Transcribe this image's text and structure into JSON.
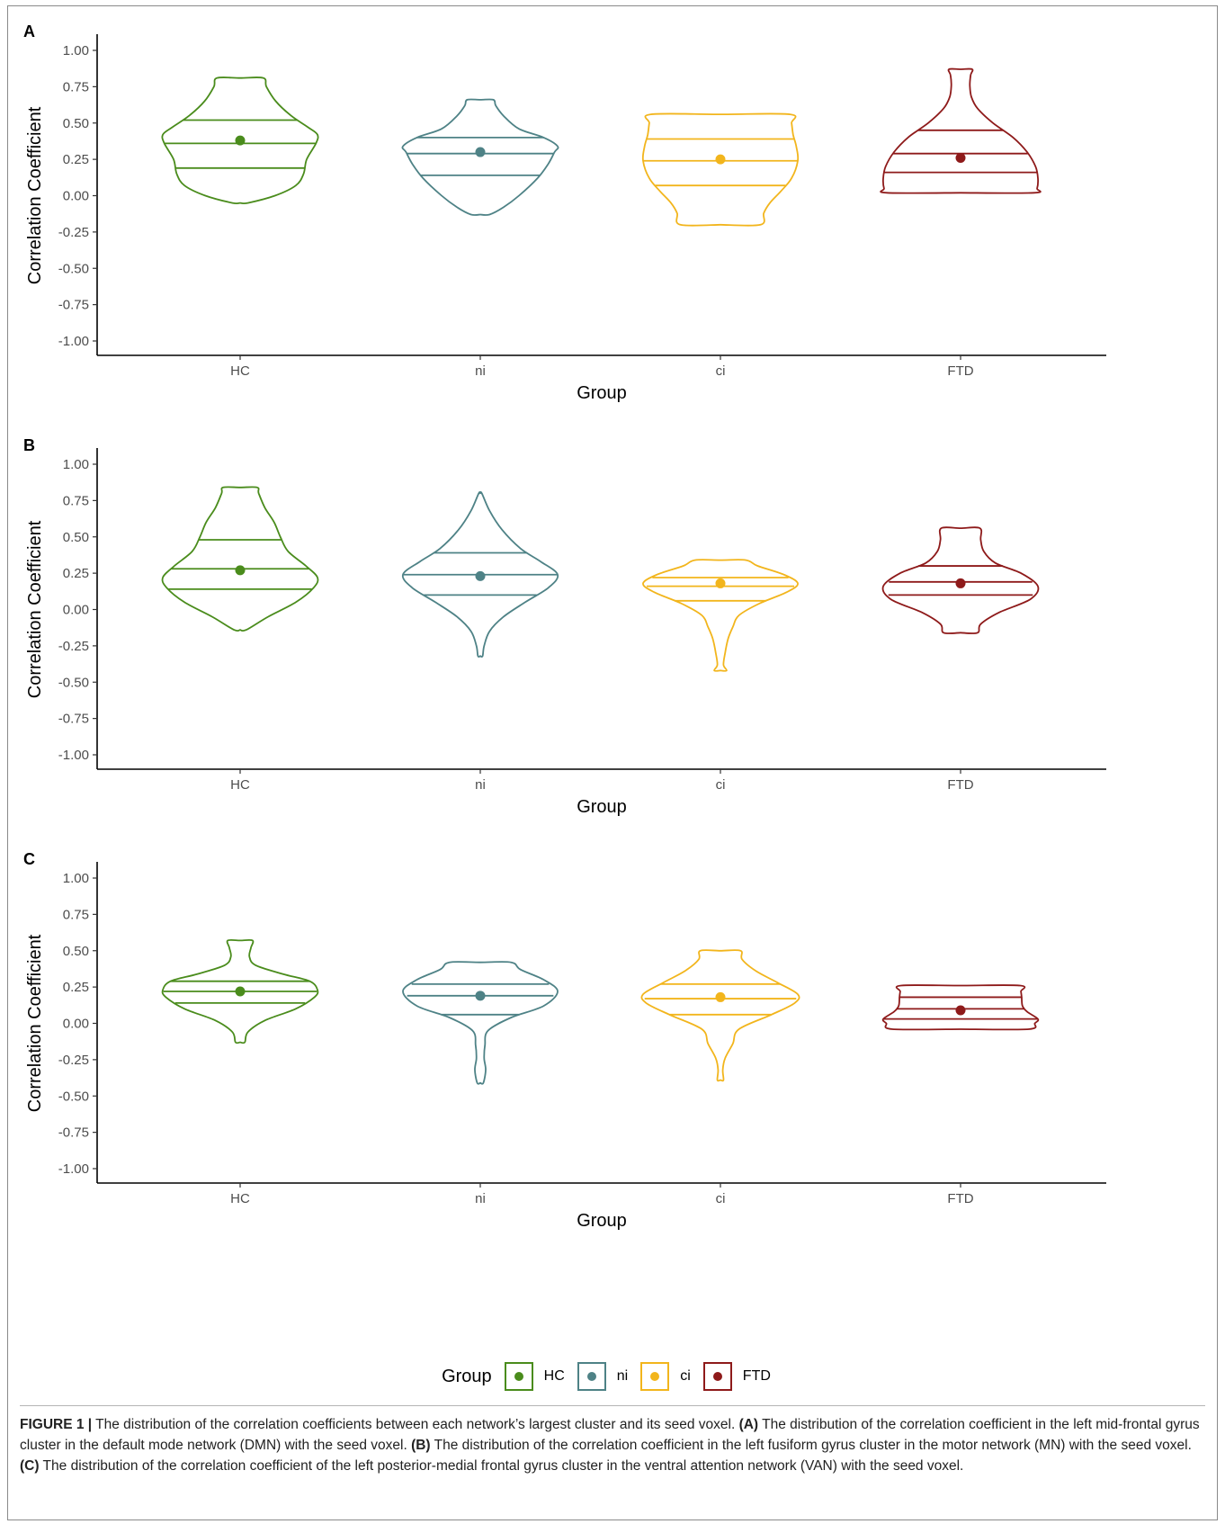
{
  "figure": {
    "label": "FIGURE 1 |",
    "caption_parts": [
      {
        "text": " The distribution of the correlation coefficients between each network’s largest cluster and its seed voxel. ",
        "bold": false
      },
      {
        "text": "(A)",
        "bold": true
      },
      {
        "text": " The distribution of the correlation coefficient in the left mid-frontal gyrus cluster in the default mode network (DMN) with the seed voxel. ",
        "bold": false
      },
      {
        "text": "(B)",
        "bold": true
      },
      {
        "text": " The distribution of the correlation coefficient in the left fusiform gyrus cluster in the motor network (MN) with the seed voxel. ",
        "bold": false
      },
      {
        "text": "(C)",
        "bold": true
      },
      {
        "text": " The distribution of the correlation coefficient of the left posterior-medial frontal gyrus cluster in the ventral attention network (VAN) with the seed voxel.",
        "bold": false
      }
    ]
  },
  "legend": {
    "title": "Group",
    "items": [
      {
        "label": "HC",
        "color": "#4a8c1c"
      },
      {
        "label": "ni",
        "color": "#4e8286"
      },
      {
        "label": "ci",
        "color": "#f2b51c"
      },
      {
        "label": "FTD",
        "color": "#8e1a1a"
      }
    ]
  },
  "chart_data": [
    {
      "type": "violin",
      "panel": "A",
      "xlabel": "Group",
      "ylabel": "Correlation Coefficient",
      "ylim": [
        -1.0,
        1.0
      ],
      "yticks": [
        1.0,
        0.75,
        0.5,
        0.25,
        0.0,
        -0.25,
        -0.5,
        -0.75,
        -1.0
      ],
      "ytick_labels": [
        "1.00",
        "0.75",
        "0.50",
        "0.25",
        "0.00",
        "-0.25",
        "-0.50",
        "-0.75",
        "-1.00"
      ],
      "categories": [
        "HC",
        "ni",
        "ci",
        "FTD"
      ],
      "groups": [
        {
          "name": "HC",
          "color": "#4a8c1c",
          "min": -0.05,
          "max": 0.81,
          "q1": 0.19,
          "median": 0.36,
          "q3": 0.52,
          "mean": 0.38,
          "profile": [
            [
              -0.05,
              0.1
            ],
            [
              0.0,
              0.45
            ],
            [
              0.07,
              0.72
            ],
            [
              0.15,
              0.82
            ],
            [
              0.25,
              0.86
            ],
            [
              0.36,
              0.98
            ],
            [
              0.42,
              1.0
            ],
            [
              0.47,
              0.88
            ],
            [
              0.55,
              0.66
            ],
            [
              0.65,
              0.46
            ],
            [
              0.75,
              0.34
            ],
            [
              0.81,
              0.3
            ]
          ]
        },
        {
          "name": "ni",
          "color": "#4e8286",
          "min": -0.13,
          "max": 0.66,
          "q1": 0.14,
          "median": 0.29,
          "q3": 0.4,
          "mean": 0.3,
          "profile": [
            [
              -0.13,
              0.12
            ],
            [
              -0.08,
              0.3
            ],
            [
              0.0,
              0.5
            ],
            [
              0.12,
              0.74
            ],
            [
              0.22,
              0.88
            ],
            [
              0.3,
              0.96
            ],
            [
              0.34,
              1.0
            ],
            [
              0.4,
              0.82
            ],
            [
              0.46,
              0.5
            ],
            [
              0.55,
              0.3
            ],
            [
              0.62,
              0.2
            ],
            [
              0.66,
              0.17
            ]
          ]
        },
        {
          "name": "ci",
          "color": "#f2b51c",
          "min": -0.2,
          "max": 0.56,
          "q1": 0.07,
          "median": 0.24,
          "q3": 0.39,
          "mean": 0.25,
          "profile": [
            [
              -0.2,
              0.52
            ],
            [
              -0.12,
              0.56
            ],
            [
              -0.05,
              0.64
            ],
            [
              0.03,
              0.78
            ],
            [
              0.12,
              0.92
            ],
            [
              0.24,
              1.0
            ],
            [
              0.34,
              0.98
            ],
            [
              0.42,
              0.94
            ],
            [
              0.5,
              0.92
            ],
            [
              0.56,
              0.9
            ]
          ]
        },
        {
          "name": "FTD",
          "color": "#8e1a1a",
          "min": 0.02,
          "max": 0.87,
          "q1": 0.16,
          "median": 0.29,
          "q3": 0.45,
          "mean": 0.26,
          "profile": [
            [
              0.02,
              0.95
            ],
            [
              0.05,
              0.99
            ],
            [
              0.12,
              1.0
            ],
            [
              0.2,
              0.97
            ],
            [
              0.3,
              0.86
            ],
            [
              0.4,
              0.68
            ],
            [
              0.5,
              0.42
            ],
            [
              0.6,
              0.22
            ],
            [
              0.68,
              0.14
            ],
            [
              0.76,
              0.12
            ],
            [
              0.83,
              0.13
            ],
            [
              0.87,
              0.15
            ]
          ]
        }
      ]
    },
    {
      "type": "violin",
      "panel": "B",
      "xlabel": "Group",
      "ylabel": "Correlation Coefficient",
      "ylim": [
        -1.0,
        1.0
      ],
      "yticks": [
        1.0,
        0.75,
        0.5,
        0.25,
        0.0,
        -0.25,
        -0.5,
        -0.75,
        -1.0
      ],
      "ytick_labels": [
        "1.00",
        "0.75",
        "0.50",
        "0.25",
        "0.00",
        "-0.25",
        "-0.50",
        "-0.75",
        "-1.00"
      ],
      "categories": [
        "HC",
        "ni",
        "ci",
        "FTD"
      ],
      "groups": [
        {
          "name": "HC",
          "color": "#4a8c1c",
          "min": -0.14,
          "max": 0.84,
          "q1": 0.14,
          "median": 0.28,
          "q3": 0.48,
          "mean": 0.27,
          "profile": [
            [
              -0.14,
              0.08
            ],
            [
              -0.05,
              0.36
            ],
            [
              0.05,
              0.72
            ],
            [
              0.15,
              0.95
            ],
            [
              0.22,
              1.0
            ],
            [
              0.3,
              0.85
            ],
            [
              0.4,
              0.62
            ],
            [
              0.5,
              0.52
            ],
            [
              0.6,
              0.44
            ],
            [
              0.7,
              0.32
            ],
            [
              0.8,
              0.24
            ],
            [
              0.84,
              0.22
            ]
          ]
        },
        {
          "name": "ni",
          "color": "#4e8286",
          "min": -0.32,
          "max": 0.8,
          "q1": 0.1,
          "median": 0.24,
          "q3": 0.39,
          "mean": 0.23,
          "profile": [
            [
              -0.32,
              0.03
            ],
            [
              -0.25,
              0.05
            ],
            [
              -0.15,
              0.12
            ],
            [
              -0.05,
              0.3
            ],
            [
              0.05,
              0.58
            ],
            [
              0.15,
              0.88
            ],
            [
              0.24,
              1.0
            ],
            [
              0.33,
              0.78
            ],
            [
              0.42,
              0.52
            ],
            [
              0.55,
              0.28
            ],
            [
              0.68,
              0.12
            ],
            [
              0.8,
              0.02
            ]
          ]
        },
        {
          "name": "ci",
          "color": "#f2b51c",
          "min": -0.42,
          "max": 0.34,
          "q1": 0.06,
          "median": 0.16,
          "q3": 0.22,
          "mean": 0.18,
          "profile": [
            [
              -0.42,
              0.08
            ],
            [
              -0.38,
              0.04
            ],
            [
              -0.3,
              0.06
            ],
            [
              -0.2,
              0.1
            ],
            [
              -0.12,
              0.16
            ],
            [
              -0.04,
              0.24
            ],
            [
              0.04,
              0.5
            ],
            [
              0.12,
              0.86
            ],
            [
              0.18,
              1.0
            ],
            [
              0.24,
              0.82
            ],
            [
              0.3,
              0.48
            ],
            [
              0.34,
              0.33
            ]
          ]
        },
        {
          "name": "FTD",
          "color": "#8e1a1a",
          "min": -0.16,
          "max": 0.56,
          "q1": 0.1,
          "median": 0.19,
          "q3": 0.3,
          "mean": 0.18,
          "profile": [
            [
              -0.16,
              0.22
            ],
            [
              -0.1,
              0.26
            ],
            [
              -0.02,
              0.5
            ],
            [
              0.07,
              0.9
            ],
            [
              0.16,
              1.0
            ],
            [
              0.25,
              0.78
            ],
            [
              0.32,
              0.45
            ],
            [
              0.4,
              0.3
            ],
            [
              0.48,
              0.26
            ],
            [
              0.56,
              0.25
            ]
          ]
        }
      ]
    },
    {
      "type": "violin",
      "panel": "C",
      "xlabel": "Group",
      "ylabel": "Correlation Coefficient",
      "ylim": [
        -1.0,
        1.0
      ],
      "yticks": [
        1.0,
        0.75,
        0.5,
        0.25,
        0.0,
        -0.25,
        -0.5,
        -0.75,
        -1.0
      ],
      "ytick_labels": [
        "1.00",
        "0.75",
        "0.50",
        "0.25",
        "0.00",
        "-0.25",
        "-0.50",
        "-0.75",
        "-1.00"
      ],
      "categories": [
        "HC",
        "ni",
        "ci",
        "FTD"
      ],
      "groups": [
        {
          "name": "HC",
          "color": "#4a8c1c",
          "min": -0.13,
          "max": 0.57,
          "q1": 0.14,
          "median": 0.22,
          "q3": 0.29,
          "mean": 0.22,
          "profile": [
            [
              -0.13,
              0.06
            ],
            [
              -0.06,
              0.1
            ],
            [
              0.02,
              0.32
            ],
            [
              0.1,
              0.72
            ],
            [
              0.18,
              0.96
            ],
            [
              0.23,
              1.0
            ],
            [
              0.29,
              0.9
            ],
            [
              0.34,
              0.55
            ],
            [
              0.4,
              0.2
            ],
            [
              0.46,
              0.12
            ],
            [
              0.52,
              0.14
            ],
            [
              0.57,
              0.16
            ]
          ]
        },
        {
          "name": "ni",
          "color": "#4e8286",
          "min": -0.41,
          "max": 0.42,
          "q1": 0.06,
          "median": 0.19,
          "q3": 0.27,
          "mean": 0.19,
          "profile": [
            [
              -0.41,
              0.04
            ],
            [
              -0.32,
              0.07
            ],
            [
              -0.24,
              0.05
            ],
            [
              -0.15,
              0.06
            ],
            [
              -0.05,
              0.1
            ],
            [
              0.04,
              0.4
            ],
            [
              0.12,
              0.82
            ],
            [
              0.22,
              1.0
            ],
            [
              0.3,
              0.82
            ],
            [
              0.37,
              0.52
            ],
            [
              0.42,
              0.4
            ]
          ]
        },
        {
          "name": "ci",
          "color": "#f2b51c",
          "min": -0.39,
          "max": 0.5,
          "q1": 0.06,
          "median": 0.17,
          "q3": 0.27,
          "mean": 0.18,
          "profile": [
            [
              -0.39,
              0.04
            ],
            [
              -0.32,
              0.03
            ],
            [
              -0.24,
              0.06
            ],
            [
              -0.14,
              0.16
            ],
            [
              -0.04,
              0.24
            ],
            [
              0.06,
              0.66
            ],
            [
              0.14,
              0.96
            ],
            [
              0.2,
              1.0
            ],
            [
              0.28,
              0.74
            ],
            [
              0.36,
              0.46
            ],
            [
              0.44,
              0.28
            ],
            [
              0.5,
              0.26
            ]
          ]
        },
        {
          "name": "FTD",
          "color": "#8e1a1a",
          "min": -0.04,
          "max": 0.26,
          "q1": 0.03,
          "median": 0.1,
          "q3": 0.18,
          "mean": 0.09,
          "profile": [
            [
              -0.04,
              0.88
            ],
            [
              0.0,
              0.96
            ],
            [
              0.03,
              1.0
            ],
            [
              0.08,
              0.86
            ],
            [
              0.12,
              0.8
            ],
            [
              0.18,
              0.79
            ],
            [
              0.22,
              0.78
            ],
            [
              0.26,
              0.77
            ]
          ]
        }
      ]
    }
  ]
}
